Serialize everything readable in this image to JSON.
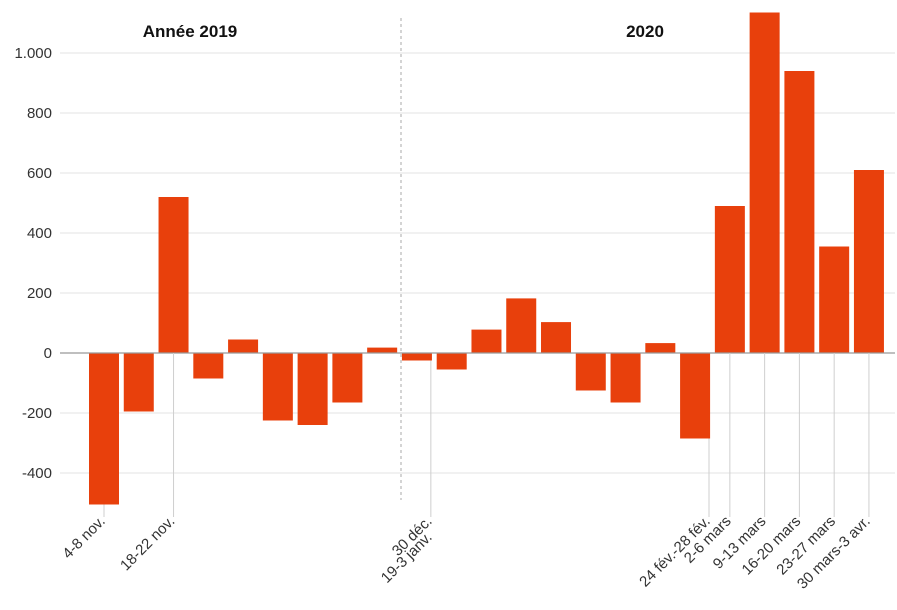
{
  "chart_data": {
    "type": "bar",
    "headers": [
      "Année 2019",
      "2020"
    ],
    "values": [
      -505,
      -195,
      520,
      -85,
      45,
      -225,
      -240,
      -165,
      18,
      -25,
      -55,
      78,
      182,
      103,
      -125,
      -165,
      33,
      -285,
      490,
      1135,
      940,
      355,
      610
    ],
    "x_tick_labels": [
      "4-8 nov.",
      "18-22 nov.",
      "30 déc.",
      "19-3 janv.",
      "24 fév.-28 fév.",
      "2-6 mars",
      "9-13 mars",
      "16-20 mars",
      "23-27 mars",
      "30 mars-3 avr."
    ],
    "y_tick_labels": [
      "-400",
      "-200",
      "0",
      "200",
      "400",
      "600",
      "800",
      "1.000"
    ],
    "y_ticks": [
      -400,
      -200,
      0,
      200,
      400,
      600,
      800,
      1000
    ],
    "ylim": [
      -530,
      1150
    ],
    "bar_color": "#e8400c",
    "grid": true,
    "xlabel": "",
    "ylabel": ""
  }
}
